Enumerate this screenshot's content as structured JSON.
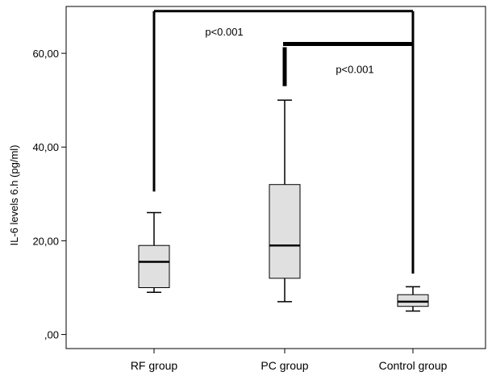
{
  "chart_data": {
    "type": "box",
    "ylabel": "IL-6 levels 6.h (pg/ml)",
    "xlabel": "",
    "ylim": [
      -3,
      70
    ],
    "y_ticks": [
      {
        "value": 0,
        "label": ",00"
      },
      {
        "value": 20,
        "label": "20,00"
      },
      {
        "value": 40,
        "label": "40,00"
      },
      {
        "value": 60,
        "label": "60,00"
      }
    ],
    "categories": [
      "RF group",
      "PC group",
      "Control group"
    ],
    "boxes": [
      {
        "category": "RF group",
        "min": 9,
        "q1": 10,
        "median": 15.5,
        "q3": 19,
        "max": 26
      },
      {
        "category": "PC group",
        "min": 7,
        "q1": 12,
        "median": 19,
        "q3": 32,
        "max": 50
      },
      {
        "category": "Control group",
        "min": 5,
        "q1": 6,
        "median": 7,
        "q3": 8.5,
        "max": 10.2
      }
    ],
    "box_fill": "#e0e0e0",
    "annotations": [
      {
        "text": "p<0.001",
        "from": "RF group",
        "to": "Control group",
        "bracket_y": 69,
        "left_drop_to": 30.5,
        "right_drop_to": 13,
        "label_x_between": [
          0.28,
          0.28
        ],
        "label_y": 64.5
      },
      {
        "text": "p<0.001",
        "from": "PC group",
        "to": "Control group",
        "bracket_y": 62,
        "left_drop_to": 53,
        "right_drop_to": 62,
        "label_y": 56.5
      }
    ]
  }
}
